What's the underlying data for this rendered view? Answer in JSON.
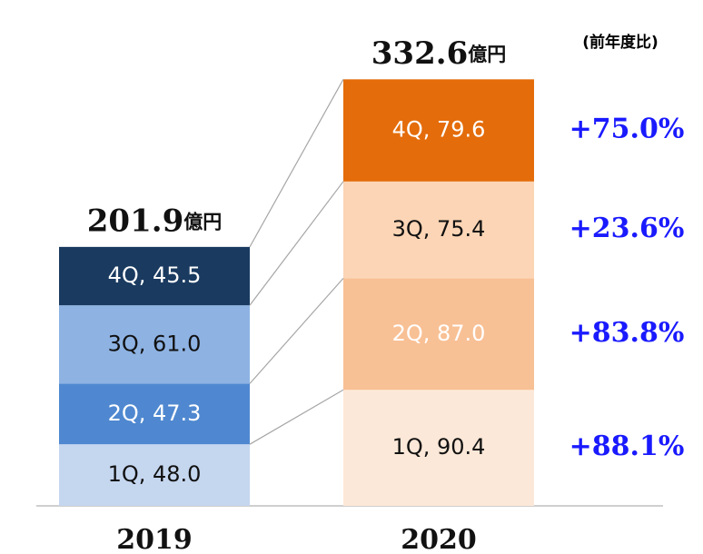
{
  "chart_data": {
    "type": "bar",
    "stacked": true,
    "categories": [
      "2019",
      "2020"
    ],
    "series": [
      {
        "colors": [
          "#c5d6ef",
          "#fce8d8"
        ],
        "label_colors": [
          "#111111",
          "#111111"
        ],
        "values": [
          48.0,
          90.4
        ],
        "value_labels": [
          "1Q, 48.0",
          "1Q, 90.4"
        ]
      },
      {
        "colors": [
          "#4f88d0",
          "#f8c095"
        ],
        "label_colors": [
          "#ffffff",
          "#ffffff"
        ],
        "values": [
          47.3,
          87.0
        ],
        "value_labels": [
          "2Q, 47.3",
          "2Q, 87.0"
        ]
      },
      {
        "colors": [
          "#8eb3e3",
          "#fbd5b5"
        ],
        "label_colors": [
          "#111111",
          "#111111"
        ],
        "values": [
          61.0,
          75.4
        ],
        "value_labels": [
          "3Q, 61.0",
          "3Q, 75.4"
        ]
      },
      {
        "colors": [
          "#1a3a60",
          "#e46c0a"
        ],
        "label_colors": [
          "#ffffff",
          "#ffffff"
        ],
        "values": [
          45.5,
          79.6
        ],
        "value_labels": [
          "4Q, 45.5",
          "4Q, 79.6"
        ]
      }
    ],
    "totals": [
      201.9,
      332.6
    ],
    "total_unit": "億円",
    "growth": {
      "values": [
        88.1,
        83.8,
        23.6,
        75.0
      ],
      "value_labels": [
        "+88.1%",
        "+83.8%",
        "+23.6%",
        "+75.0%"
      ],
      "color": "#1a1aff"
    },
    "growth_note": "(前年度比)",
    "ylim": [
      0,
      340
    ]
  }
}
